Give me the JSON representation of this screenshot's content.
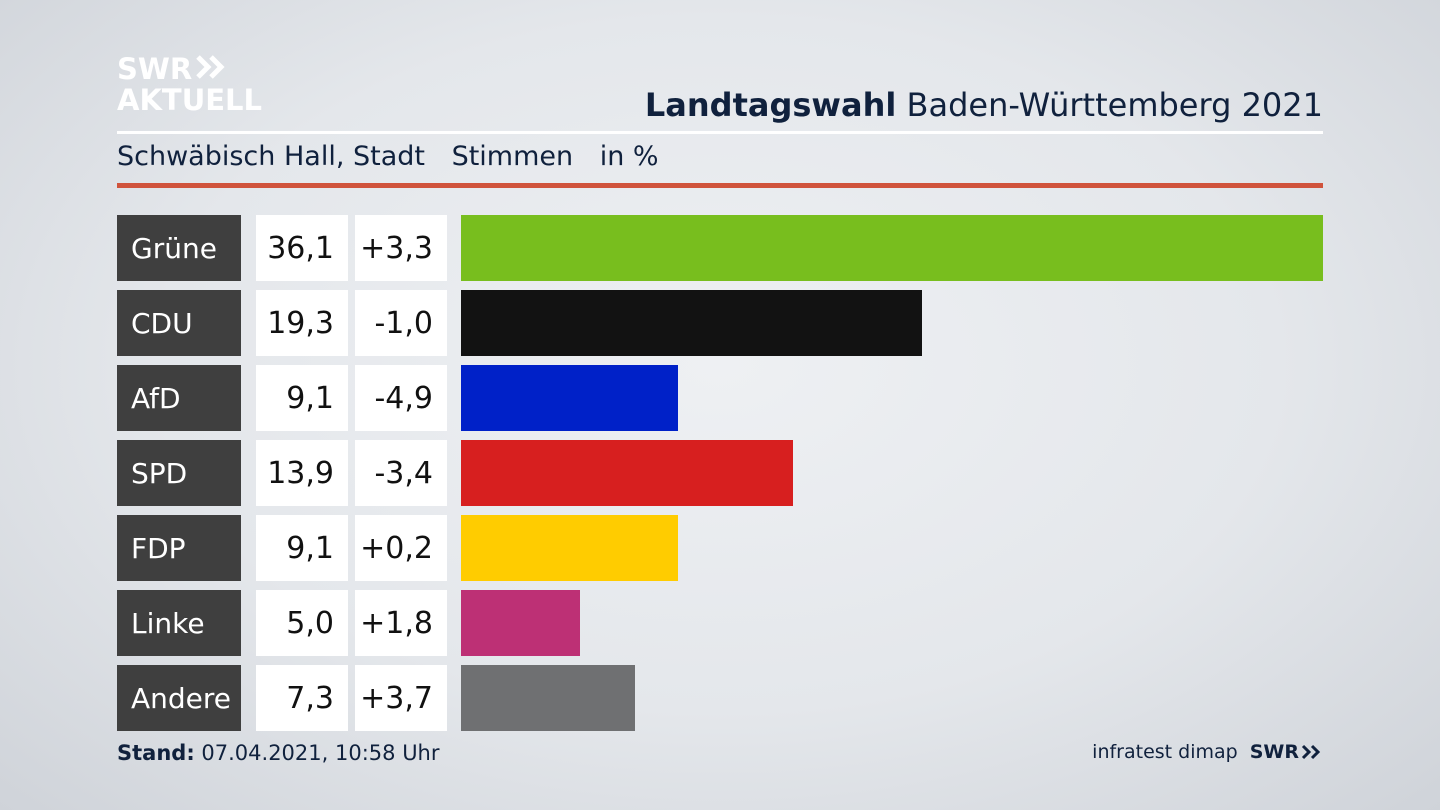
{
  "logo": {
    "line1": "SWR",
    "line2": "AKTUELL"
  },
  "title": {
    "bold": "Landtagswahl",
    "rest": "Baden-Württemberg 2021"
  },
  "subtitle": {
    "place": "Schwäbisch Hall, Stadt",
    "measure": "Stimmen",
    "unit": "in %"
  },
  "colors": {
    "accent_rule": "#d0533c",
    "label_bg": "#3f3f3f"
  },
  "chart_data": {
    "type": "bar",
    "orientation": "horizontal",
    "categories": [
      "Grüne",
      "CDU",
      "AfD",
      "SPD",
      "FDP",
      "Linke",
      "Andere"
    ],
    "values": [
      36.1,
      19.3,
      9.1,
      13.9,
      9.1,
      5.0,
      7.3
    ],
    "value_labels": [
      "36,1",
      "19,3",
      "9,1",
      "13,9",
      "9,1",
      "5,0",
      "7,3"
    ],
    "changes": [
      "+3,3",
      "-1,0",
      "-4,9",
      "-3,4",
      "+0,2",
      "+1,8",
      "+3,7"
    ],
    "bar_colors": [
      "#78be1e",
      "#121212",
      "#0021c8",
      "#d71f1f",
      "#ffcc00",
      "#bd3075",
      "#6f7072"
    ],
    "title": "Landtagswahl Baden-Württemberg 2021",
    "xlabel": "",
    "ylabel": "",
    "grid": false
  },
  "footer": {
    "stand_label": "Stand:",
    "stand_value": "07.04.2021, 10:58 Uhr",
    "source": "infratest dimap",
    "brand": "SWR"
  }
}
